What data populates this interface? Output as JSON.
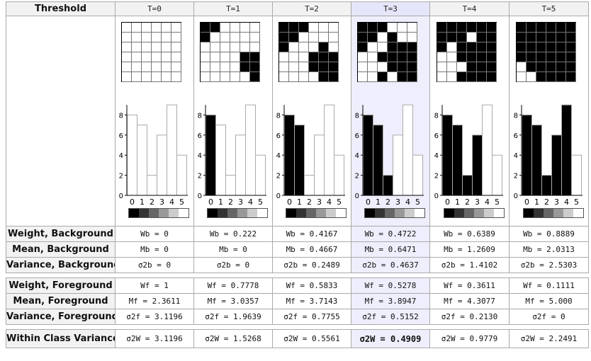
{
  "header": {
    "threshold_label": "Threshold",
    "columns": [
      "T=0",
      "T=1",
      "T=2",
      "T=3",
      "T=4",
      "T=5"
    ]
  },
  "selected_column": 3,
  "grids": [
    [
      [
        0,
        0,
        0,
        0,
        0,
        0
      ],
      [
        0,
        0,
        0,
        0,
        0,
        0
      ],
      [
        0,
        0,
        0,
        0,
        0,
        0
      ],
      [
        0,
        0,
        0,
        0,
        0,
        0
      ],
      [
        0,
        0,
        0,
        0,
        0,
        0
      ],
      [
        0,
        0,
        0,
        0,
        0,
        0
      ]
    ],
    [
      [
        1,
        1,
        0,
        0,
        0,
        0
      ],
      [
        1,
        0,
        0,
        0,
        0,
        0
      ],
      [
        0,
        0,
        0,
        0,
        0,
        0
      ],
      [
        0,
        0,
        0,
        0,
        1,
        1
      ],
      [
        0,
        0,
        0,
        0,
        1,
        1
      ],
      [
        0,
        0,
        0,
        0,
        0,
        1
      ]
    ],
    [
      [
        1,
        1,
        1,
        0,
        0,
        0
      ],
      [
        1,
        1,
        0,
        0,
        0,
        0
      ],
      [
        1,
        0,
        0,
        0,
        1,
        0
      ],
      [
        0,
        0,
        0,
        1,
        1,
        1
      ],
      [
        0,
        0,
        0,
        1,
        1,
        1
      ],
      [
        0,
        0,
        0,
        0,
        1,
        1
      ]
    ],
    [
      [
        1,
        1,
        1,
        0,
        0,
        0
      ],
      [
        1,
        1,
        0,
        1,
        0,
        0
      ],
      [
        1,
        0,
        0,
        1,
        1,
        1
      ],
      [
        0,
        0,
        1,
        1,
        1,
        1
      ],
      [
        0,
        0,
        0,
        1,
        1,
        1
      ],
      [
        0,
        0,
        1,
        0,
        1,
        1
      ]
    ],
    [
      [
        1,
        1,
        1,
        1,
        1,
        1
      ],
      [
        1,
        1,
        1,
        0,
        1,
        1
      ],
      [
        1,
        0,
        1,
        1,
        1,
        1
      ],
      [
        0,
        0,
        1,
        1,
        1,
        1
      ],
      [
        0,
        0,
        0,
        1,
        1,
        1
      ],
      [
        0,
        0,
        1,
        1,
        1,
        1
      ]
    ],
    [
      [
        1,
        1,
        1,
        1,
        1,
        1
      ],
      [
        1,
        1,
        1,
        1,
        1,
        1
      ],
      [
        1,
        1,
        1,
        1,
        1,
        1
      ],
      [
        1,
        1,
        1,
        1,
        1,
        1
      ],
      [
        0,
        1,
        1,
        1,
        1,
        1
      ],
      [
        0,
        0,
        1,
        1,
        1,
        1
      ]
    ]
  ],
  "histogram": {
    "values": [
      8,
      7,
      2,
      6,
      9,
      4
    ],
    "x_ticks": [
      "0",
      "1",
      "2",
      "3",
      "4",
      "5"
    ],
    "y_ticks": [
      "0",
      "2",
      "4",
      "6",
      "8"
    ],
    "ylim": [
      0,
      9
    ]
  },
  "gradient_colors": [
    "#000000",
    "#333333",
    "#666666",
    "#999999",
    "#cccccc",
    "#ffffff"
  ],
  "rows": [
    {
      "label": "Weight, Background",
      "values": [
        "Wb = 0",
        "Wb = 0.222",
        "Wb = 0.4167",
        "Wb = 0.4722",
        "Wb = 0.6389",
        "Wb = 0.8889"
      ]
    },
    {
      "label": "Mean, Background",
      "values": [
        "Mb = 0",
        "Mb = 0",
        "Mb = 0.4667",
        "Mb = 0.6471",
        "Mb = 1.2609",
        "Mb = 2.0313"
      ]
    },
    {
      "label": "Variance, Background",
      "values": [
        "σ2b = 0",
        "σ2b = 0",
        "σ2b = 0.2489",
        "σ2b = 0.4637",
        "σ2b = 1.4102",
        "σ2b = 2.5303"
      ]
    },
    {
      "label": "Weight, Foreground",
      "values": [
        "Wf = 1",
        "Wf = 0.7778",
        "Wf = 0.5833",
        "Wf = 0.5278",
        "Wf = 0.3611",
        "Wf = 0.1111"
      ]
    },
    {
      "label": "Mean, Foreground",
      "values": [
        "Mf = 2.3611",
        "Mf = 3.0357",
        "Mf = 3.7143",
        "Mf = 3.8947",
        "Mf = 4.3077",
        "Mf = 5.000"
      ]
    },
    {
      "label": "Variance, Foreground",
      "values": [
        "σ2f = 3.1196",
        "σ2f = 1.9639",
        "σ2f = 0.7755",
        "σ2f = 0.5152",
        "σ2f = 0.2130",
        "σ2f = 0"
      ]
    },
    {
      "label": "Within Class Variance",
      "values": [
        "σ2W = 3.1196",
        "σ2W = 1.5268",
        "σ2W = 0.5561",
        "σ2W = 0.4909",
        "σ2W = 0.9779",
        "σ2W = 2.2491"
      ]
    }
  ]
}
